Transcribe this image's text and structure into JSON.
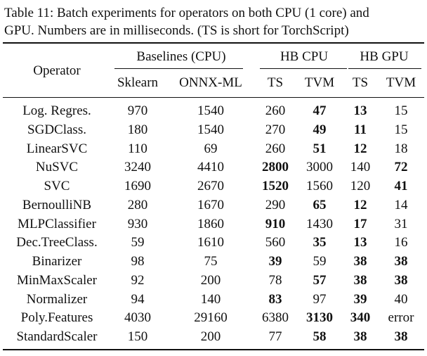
{
  "caption": {
    "line1": "Table 11: Batch experiments for operators on both CPU (1 core) and",
    "line2": "GPU. Numbers are in milliseconds. (TS is short for TorchScript)"
  },
  "header": {
    "operator": "Operator",
    "baselines_group": "Baselines (CPU)",
    "hb_cpu_group": "HB CPU",
    "hb_gpu_group": "HB GPU",
    "sklearn": "Sklearn",
    "onnx_ml": "ONNX-ML",
    "cpu_ts": "TS",
    "cpu_tvm": "TVM",
    "gpu_ts": "TS",
    "gpu_tvm": "TVM"
  },
  "rows": [
    {
      "op": "Log. Regres.",
      "cells": [
        {
          "v": "970",
          "b": false
        },
        {
          "v": "1540",
          "b": false
        },
        {
          "v": "260",
          "b": false
        },
        {
          "v": "47",
          "b": true
        },
        {
          "v": "13",
          "b": true
        },
        {
          "v": "15",
          "b": false
        }
      ]
    },
    {
      "op": "SGDClass.",
      "cells": [
        {
          "v": "180",
          "b": false
        },
        {
          "v": "1540",
          "b": false
        },
        {
          "v": "270",
          "b": false
        },
        {
          "v": "49",
          "b": true
        },
        {
          "v": "11",
          "b": true
        },
        {
          "v": "15",
          "b": false
        }
      ]
    },
    {
      "op": "LinearSVC",
      "cells": [
        {
          "v": "110",
          "b": false
        },
        {
          "v": "69",
          "b": false
        },
        {
          "v": "260",
          "b": false
        },
        {
          "v": "51",
          "b": true
        },
        {
          "v": "12",
          "b": true
        },
        {
          "v": "18",
          "b": false
        }
      ]
    },
    {
      "op": "NuSVC",
      "cells": [
        {
          "v": "3240",
          "b": false
        },
        {
          "v": "4410",
          "b": false
        },
        {
          "v": "2800",
          "b": true
        },
        {
          "v": "3000",
          "b": false
        },
        {
          "v": "140",
          "b": false
        },
        {
          "v": "72",
          "b": true
        }
      ]
    },
    {
      "op": "SVC",
      "cells": [
        {
          "v": "1690",
          "b": false
        },
        {
          "v": "2670",
          "b": false
        },
        {
          "v": "1520",
          "b": true
        },
        {
          "v": "1560",
          "b": false
        },
        {
          "v": "120",
          "b": false
        },
        {
          "v": "41",
          "b": true
        }
      ]
    },
    {
      "op": "BernoulliNB",
      "cells": [
        {
          "v": "280",
          "b": false
        },
        {
          "v": "1670",
          "b": false
        },
        {
          "v": "290",
          "b": false
        },
        {
          "v": "65",
          "b": true
        },
        {
          "v": "12",
          "b": true
        },
        {
          "v": "14",
          "b": false
        }
      ]
    },
    {
      "op": "MLPClassifier",
      "cells": [
        {
          "v": "930",
          "b": false
        },
        {
          "v": "1860",
          "b": false
        },
        {
          "v": "910",
          "b": true
        },
        {
          "v": "1430",
          "b": false
        },
        {
          "v": "17",
          "b": true
        },
        {
          "v": "31",
          "b": false
        }
      ]
    },
    {
      "op": "Dec.TreeClass.",
      "cells": [
        {
          "v": "59",
          "b": false
        },
        {
          "v": "1610",
          "b": false
        },
        {
          "v": "560",
          "b": false
        },
        {
          "v": "35",
          "b": true
        },
        {
          "v": "13",
          "b": true
        },
        {
          "v": "16",
          "b": false
        }
      ]
    },
    {
      "op": "Binarizer",
      "cells": [
        {
          "v": "98",
          "b": false
        },
        {
          "v": "75",
          "b": false
        },
        {
          "v": "39",
          "b": true
        },
        {
          "v": "59",
          "b": false
        },
        {
          "v": "38",
          "b": true
        },
        {
          "v": "38",
          "b": true
        }
      ]
    },
    {
      "op": "MinMaxScaler",
      "cells": [
        {
          "v": "92",
          "b": false
        },
        {
          "v": "200",
          "b": false
        },
        {
          "v": "78",
          "b": false
        },
        {
          "v": "57",
          "b": true
        },
        {
          "v": "38",
          "b": true
        },
        {
          "v": "38",
          "b": true
        }
      ]
    },
    {
      "op": "Normalizer",
      "cells": [
        {
          "v": "94",
          "b": false
        },
        {
          "v": "140",
          "b": false
        },
        {
          "v": "83",
          "b": true
        },
        {
          "v": "97",
          "b": false
        },
        {
          "v": "39",
          "b": true
        },
        {
          "v": "40",
          "b": false
        }
      ]
    },
    {
      "op": "Poly.Features",
      "cells": [
        {
          "v": "4030",
          "b": false
        },
        {
          "v": "29160",
          "b": false
        },
        {
          "v": "6380",
          "b": false
        },
        {
          "v": "3130",
          "b": true
        },
        {
          "v": "340",
          "b": true
        },
        {
          "v": "error",
          "b": false
        }
      ]
    },
    {
      "op": "StandardScaler",
      "cells": [
        {
          "v": "150",
          "b": false
        },
        {
          "v": "200",
          "b": false
        },
        {
          "v": "77",
          "b": false
        },
        {
          "v": "58",
          "b": true
        },
        {
          "v": "38",
          "b": true
        },
        {
          "v": "38",
          "b": true
        }
      ]
    }
  ]
}
